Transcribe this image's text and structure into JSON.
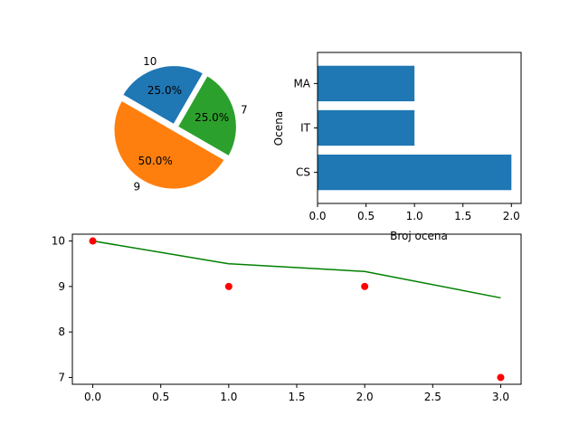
{
  "chart_data": [
    {
      "type": "pie",
      "labels": [
        "10",
        "9",
        "7"
      ],
      "values": [
        25.0,
        50.0,
        25.0
      ],
      "percent_labels": [
        "25.0%",
        "50.0%",
        "25.0%"
      ],
      "colors": [
        "#1f77b4",
        "#ff7f0e",
        "#2ca02c"
      ],
      "start_angle": 60,
      "exploded": true
    },
    {
      "type": "bar",
      "orientation": "horizontal",
      "categories": [
        "CS",
        "IT",
        "MA"
      ],
      "values": [
        2,
        1,
        1
      ],
      "color": "#1f77b4",
      "xlabel": "Broj ocena",
      "ylabel": "Ocena",
      "xlim": [
        0,
        2.1
      ],
      "xticks": [
        "0.0",
        "0.5",
        "1.0",
        "1.5",
        "2.0"
      ],
      "grid": false
    },
    {
      "type": "scatter",
      "series": [
        {
          "kind": "line",
          "color": "#008000",
          "x": [
            0,
            1,
            2,
            3
          ],
          "y": [
            10,
            9.5,
            9.33,
            8.75
          ]
        },
        {
          "kind": "points",
          "color": "#ff0000",
          "x": [
            0,
            1,
            2,
            3
          ],
          "y": [
            10,
            9,
            9,
            7
          ]
        }
      ],
      "xlim": [
        -0.15,
        3.15
      ],
      "ylim": [
        6.85,
        10.15
      ],
      "xticks": [
        "0.0",
        "0.5",
        "1.0",
        "1.5",
        "2.0",
        "2.5",
        "3.0"
      ],
      "yticks": [
        "7",
        "8",
        "9",
        "10"
      ],
      "grid": false
    }
  ]
}
